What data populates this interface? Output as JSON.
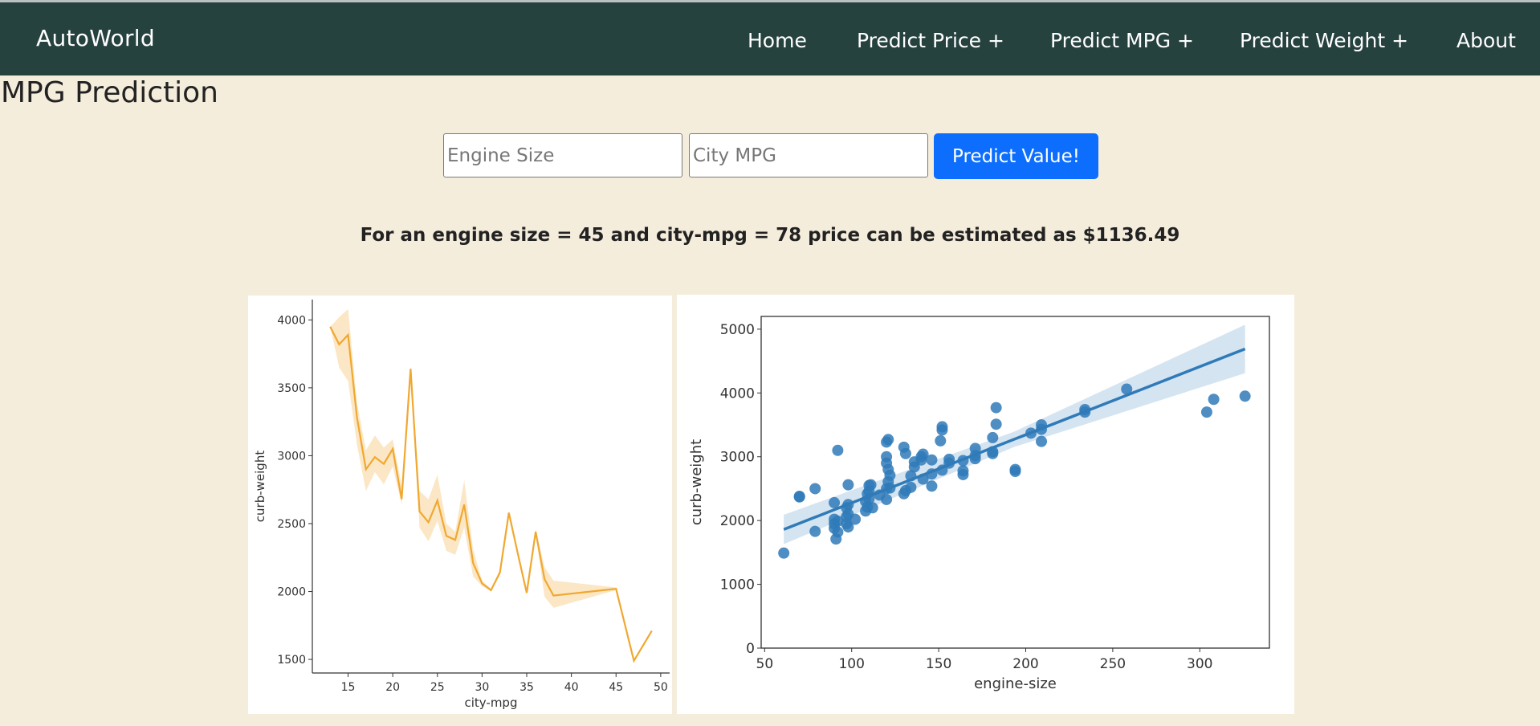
{
  "navbar": {
    "brand": "AutoWorld",
    "items": [
      "Home",
      "Predict Price +",
      "Predict MPG +",
      "Predict Weight +",
      "About"
    ]
  },
  "page": {
    "title": "MPG Prediction"
  },
  "form": {
    "engine_size_placeholder": "Engine Size",
    "city_mpg_placeholder": "City MPG",
    "submit_label": "Predict Value!"
  },
  "result": {
    "text": "For an engine size = 45 and city-mpg = 78 price can be estimated as $1136.49"
  },
  "colors": {
    "navbar": "#26423f",
    "background": "#f5eddc",
    "button": "#0d6efd",
    "line_series": "#f0a830",
    "scatter_series": "#2f7ab8"
  },
  "chart_data": [
    {
      "type": "line",
      "xlabel": "city-mpg",
      "ylabel": "curb-weight",
      "xlim": [
        11,
        51
      ],
      "ylim": [
        1400,
        4150
      ],
      "xticks": [
        15,
        20,
        25,
        30,
        35,
        40,
        45,
        50
      ],
      "yticks": [
        1500,
        2000,
        2500,
        3000,
        3500,
        4000
      ],
      "grid": false,
      "x": [
        13,
        14,
        15,
        16,
        17,
        18,
        19,
        20,
        21,
        22,
        23,
        24,
        25,
        26,
        27,
        28,
        29,
        30,
        31,
        32,
        33,
        34,
        35,
        36,
        37,
        38,
        45,
        47,
        49
      ],
      "y": [
        3950,
        3820,
        3890,
        3280,
        2900,
        2990,
        2940,
        3050,
        2680,
        3640,
        2590,
        2510,
        2670,
        2410,
        2380,
        2640,
        2210,
        2060,
        2010,
        2140,
        2580,
        2280,
        1990,
        2440,
        2090,
        1970,
        2020,
        1490,
        1710
      ],
      "band_low": [
        3950,
        3650,
        3550,
        3080,
        2740,
        2880,
        2790,
        2920,
        2640,
        3630,
        2470,
        2370,
        2520,
        2300,
        2270,
        2470,
        2110,
        2040,
        2000,
        2120,
        2570,
        2270,
        1980,
        2420,
        1960,
        1880,
        2010,
        1480,
        1700
      ],
      "band_high": [
        3950,
        4020,
        4080,
        3390,
        3040,
        3150,
        3060,
        3120,
        2780,
        3650,
        2740,
        2680,
        2860,
        2500,
        2440,
        2820,
        2310,
        2080,
        2020,
        2160,
        2590,
        2290,
        2000,
        2460,
        2180,
        2080,
        2030,
        1500,
        1720
      ]
    },
    {
      "type": "scatter",
      "xlabel": "engine-size",
      "ylabel": "curb-weight",
      "xlim": [
        48,
        340
      ],
      "ylim": [
        0,
        5200
      ],
      "xticks": [
        50,
        100,
        150,
        200,
        250,
        300
      ],
      "yticks": [
        0,
        1000,
        2000,
        3000,
        4000,
        5000
      ],
      "grid": false,
      "points": [
        [
          61,
          1490
        ],
        [
          70,
          2370
        ],
        [
          70,
          2380
        ],
        [
          79,
          1830
        ],
        [
          79,
          2500
        ],
        [
          90,
          1880
        ],
        [
          90,
          1950
        ],
        [
          90,
          2020
        ],
        [
          90,
          2280
        ],
        [
          91,
          1710
        ],
        [
          92,
          1820
        ],
        [
          92,
          1990
        ],
        [
          92,
          3100
        ],
        [
          97,
          2060
        ],
        [
          97,
          2200
        ],
        [
          97,
          1950
        ],
        [
          98,
          2250
        ],
        [
          98,
          2560
        ],
        [
          98,
          2100
        ],
        [
          98,
          1900
        ],
        [
          102,
          2020
        ],
        [
          108,
          2300
        ],
        [
          108,
          2150
        ],
        [
          109,
          2210
        ],
        [
          109,
          2420
        ],
        [
          110,
          2550
        ],
        [
          110,
          2340
        ],
        [
          110,
          2460
        ],
        [
          111,
          2560
        ],
        [
          112,
          2200
        ],
        [
          116,
          2400
        ],
        [
          120,
          2330
        ],
        [
          120,
          2500
        ],
        [
          120,
          2900
        ],
        [
          120,
          3000
        ],
        [
          120,
          3230
        ],
        [
          121,
          2800
        ],
        [
          121,
          3270
        ],
        [
          121,
          2610
        ],
        [
          122,
          2510
        ],
        [
          122,
          2710
        ],
        [
          130,
          2420
        ],
        [
          130,
          3150
        ],
        [
          131,
          2470
        ],
        [
          131,
          3050
        ],
        [
          134,
          2700
        ],
        [
          134,
          2520
        ],
        [
          136,
          2840
        ],
        [
          136,
          2920
        ],
        [
          140,
          3000
        ],
        [
          140,
          2950
        ],
        [
          141,
          3040
        ],
        [
          141,
          2650
        ],
        [
          146,
          2950
        ],
        [
          146,
          2730
        ],
        [
          146,
          2540
        ],
        [
          151,
          3250
        ],
        [
          152,
          3420
        ],
        [
          152,
          3470
        ],
        [
          152,
          2790
        ],
        [
          156,
          2900
        ],
        [
          156,
          2960
        ],
        [
          164,
          2940
        ],
        [
          164,
          2720
        ],
        [
          164,
          2780
        ],
        [
          171,
          2970
        ],
        [
          171,
          3020
        ],
        [
          171,
          3130
        ],
        [
          181,
          3080
        ],
        [
          181,
          3050
        ],
        [
          181,
          3300
        ],
        [
          183,
          3510
        ],
        [
          183,
          3770
        ],
        [
          194,
          2770
        ],
        [
          194,
          2800
        ],
        [
          203,
          3370
        ],
        [
          209,
          3500
        ],
        [
          209,
          3430
        ],
        [
          209,
          3240
        ],
        [
          234,
          3700
        ],
        [
          234,
          3740
        ],
        [
          258,
          4060
        ],
        [
          304,
          3700
        ],
        [
          308,
          3900
        ],
        [
          326,
          3950
        ]
      ],
      "regression": {
        "x": [
          61,
          326
        ],
        "y": [
          1860,
          4690
        ]
      }
    }
  ]
}
